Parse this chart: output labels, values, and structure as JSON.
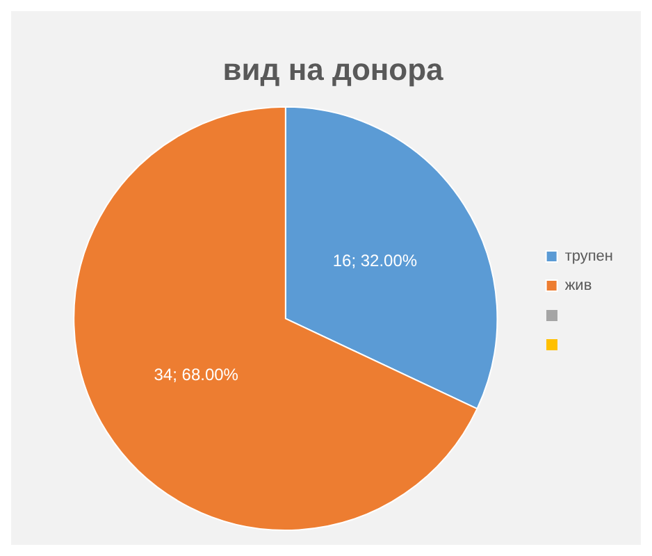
{
  "chart_data": {
    "type": "pie",
    "title": "вид на донора",
    "categories": [
      "трупен",
      "жив"
    ],
    "values": [
      16,
      34
    ],
    "colors": [
      "#5b9bd5",
      "#ed7d31"
    ],
    "value_labels": [
      "16; 32.00%",
      "34; 68.00%"
    ],
    "legend": "right"
  }
}
